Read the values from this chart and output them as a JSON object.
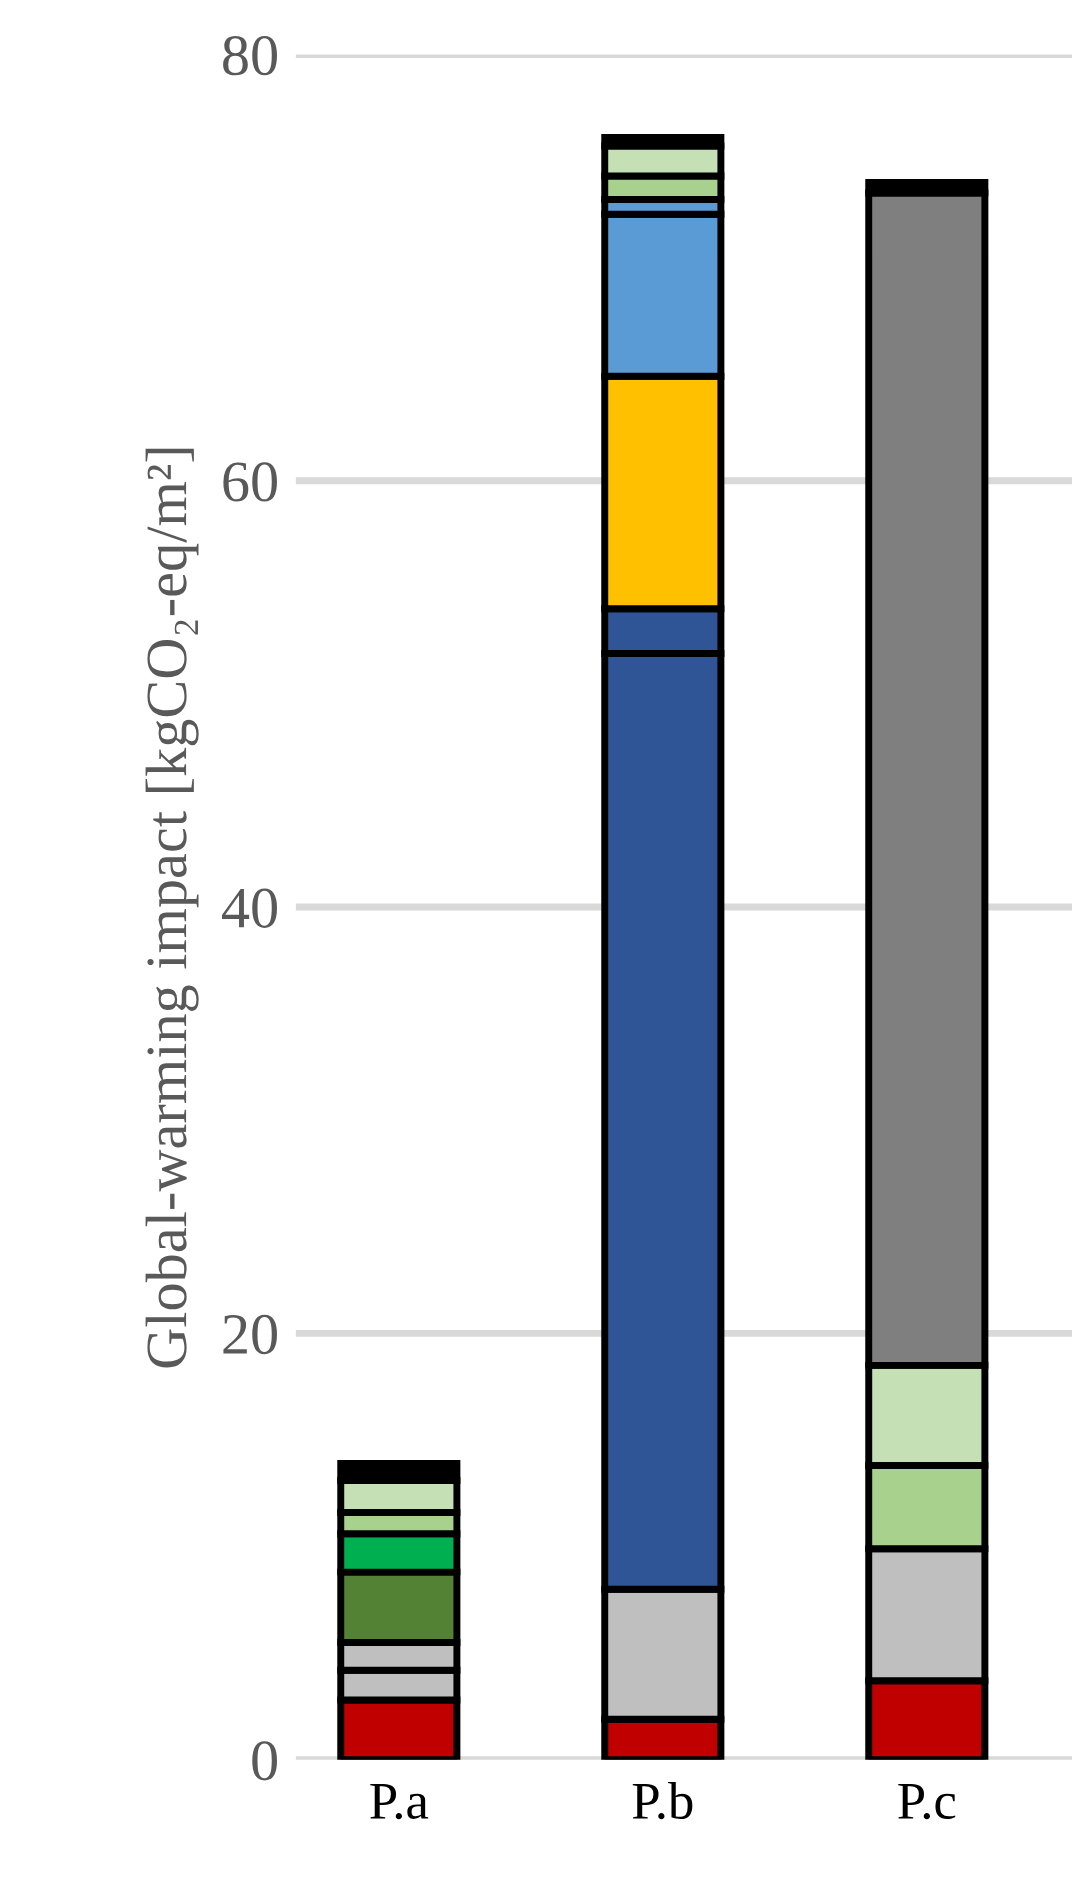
{
  "chart_data": {
    "type": "bar",
    "stacked": true,
    "ylabel": "Global-warming impact [kgCO₂-eq/m²]",
    "categories": [
      "P.a",
      "P.b",
      "P.c"
    ],
    "series": [
      {
        "color": "#c00000",
        "values": [
          2.8,
          1.9,
          3.7
        ]
      },
      {
        "color": "#bfbfbf",
        "values": [
          1.4,
          6.1,
          6.2
        ]
      },
      {
        "color": "#bfbfbf",
        "values": [
          1.3,
          null,
          null
        ]
      },
      {
        "color": "#548235",
        "values": [
          3.3,
          null,
          null
        ]
      },
      {
        "color": "#2f5597",
        "values": [
          null,
          43.9,
          null
        ]
      },
      {
        "color": "#2f5597",
        "values": [
          null,
          2.1,
          null
        ]
      },
      {
        "color": "#ffc000",
        "values": [
          null,
          10.9,
          null
        ]
      },
      {
        "color": "#5b9bd5",
        "values": [
          null,
          7.6,
          null
        ]
      },
      {
        "color": "#5b9bd5",
        "values": [
          null,
          0.7,
          null
        ]
      },
      {
        "color": "#00b050",
        "values": [
          1.8,
          null,
          null
        ]
      },
      {
        "color": "#a9d18e",
        "values": [
          1.0,
          1.1,
          3.9
        ]
      },
      {
        "color": "#c5e0b4",
        "values": [
          1.5,
          1.4,
          4.7
        ]
      },
      {
        "color": "#7f7f7f",
        "values": [
          null,
          null,
          55.0
        ]
      },
      {
        "color": "#000000",
        "values": [
          0.8,
          0.4,
          0.5
        ]
      }
    ],
    "ylim": [
      0,
      80
    ],
    "yticks": [
      0,
      20,
      40,
      60,
      80
    ],
    "grid": "y",
    "legend": false
  }
}
